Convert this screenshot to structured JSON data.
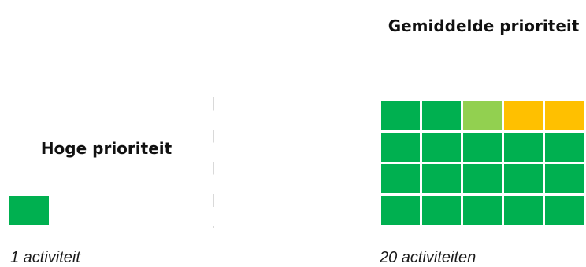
{
  "colors": {
    "green": "#00b050",
    "light_green": "#92d050",
    "amber": "#ffc000"
  },
  "groups": [
    {
      "title": "Hoge prioriteit",
      "caption": "1 activiteit",
      "cells": [
        "green"
      ]
    },
    {
      "title": "Gemiddelde prioriteit",
      "caption": "20 activiteiten",
      "cells": [
        "green",
        "green",
        "light_green",
        "amber",
        "amber",
        "green",
        "green",
        "green",
        "green",
        "green",
        "green",
        "green",
        "green",
        "green",
        "green",
        "green",
        "green",
        "green",
        "green",
        "green"
      ]
    }
  ]
}
